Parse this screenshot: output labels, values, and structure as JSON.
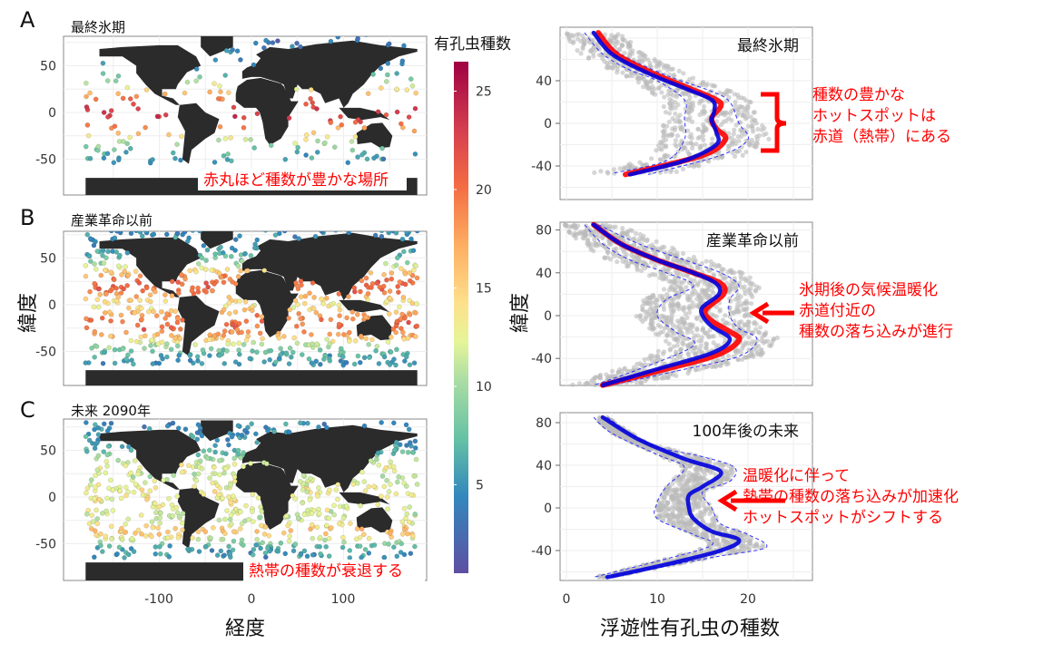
{
  "panel_letters": [
    "A",
    "B",
    "C"
  ],
  "maps": {
    "titles": [
      "最終氷期",
      "産業革命以前",
      "未来 2090年"
    ],
    "annotation_a": "赤丸ほど種数が豊かな場所",
    "annotation_c": "熱帯の種数が衰退する",
    "y_label": "緯度",
    "x_label": "経度",
    "x_ticks": [
      "-100",
      "0",
      "100"
    ],
    "y_ticks": [
      "50",
      "0",
      "-50"
    ],
    "land_color": "#2b2b2b"
  },
  "colorbar": {
    "title": "有孔虫種数",
    "ticks": [
      "25",
      "20",
      "15",
      "10",
      "5"
    ],
    "range": [
      0.5,
      26.5
    ],
    "palette": "Spectral (purple→blue→green→yellow→orange→red)"
  },
  "chart_data": [
    {
      "type": "line",
      "title": "最終氷期",
      "xlabel": "浮遊性有孔虫の種数",
      "ylabel": "緯度",
      "xlim": [
        0,
        27
      ],
      "ylim": [
        -65,
        88
      ],
      "x_ticks": [
        "0",
        "10",
        "20"
      ],
      "y_ticks": [
        "40",
        "0",
        "-40"
      ],
      "grid": true,
      "series": [
        {
          "color": "#0000dd",
          "points": [
            [
              3,
              85
            ],
            [
              5,
              65
            ],
            [
              9,
              47
            ],
            [
              13,
              33
            ],
            [
              16,
              22
            ],
            [
              16.3,
              12
            ],
            [
              16,
              3
            ],
            [
              16.5,
              -8
            ],
            [
              16.5,
              -20
            ],
            [
              13,
              -35
            ],
            [
              7,
              -48
            ]
          ]
        },
        {
          "color": "#ff0000",
          "points": [
            [
              3.5,
              85
            ],
            [
              5.5,
              65
            ],
            [
              9.5,
              47
            ],
            [
              13.5,
              33
            ],
            [
              16.5,
              22
            ],
            [
              17,
              16
            ],
            [
              16,
              5
            ],
            [
              16.5,
              -5
            ],
            [
              17.5,
              -15
            ],
            [
              15,
              -30
            ],
            [
              6.5,
              -48
            ]
          ]
        }
      ],
      "interval": {
        "lower": [
          [
            2,
            85
          ],
          [
            4,
            65
          ],
          [
            7,
            50
          ],
          [
            10,
            40
          ],
          [
            13,
            22
          ],
          [
            13,
            5
          ],
          [
            13,
            -15
          ],
          [
            11,
            -35
          ],
          [
            5,
            -47
          ]
        ],
        "upper": [
          [
            3.5,
            85
          ],
          [
            6,
            65
          ],
          [
            11,
            45
          ],
          [
            16,
            30
          ],
          [
            18,
            20
          ],
          [
            19,
            0
          ],
          [
            20,
            -15
          ],
          [
            17,
            -30
          ],
          [
            9,
            -48
          ]
        ]
      },
      "annotation": [
        "種数の豊かな",
        "ホットスポットは",
        "赤道（熱帯）にある"
      ]
    },
    {
      "type": "line",
      "title": "産業革命以前",
      "xlabel": "浮遊性有孔虫の種数",
      "ylabel": "緯度",
      "xlim": [
        0,
        27
      ],
      "ylim": [
        -68,
        88
      ],
      "x_ticks": [
        "0",
        "10",
        "20"
      ],
      "y_ticks": [
        "80",
        "40",
        "0",
        "-40"
      ],
      "grid": true,
      "series": [
        {
          "color": "#0000dd",
          "points": [
            [
              3,
              85
            ],
            [
              6,
              67
            ],
            [
              10,
              52
            ],
            [
              14,
              40
            ],
            [
              16.5,
              30
            ],
            [
              16.8,
              20
            ],
            [
              15,
              8
            ],
            [
              15,
              0
            ],
            [
              16,
              -10
            ],
            [
              18,
              -22
            ],
            [
              16,
              -35
            ],
            [
              10,
              -50
            ],
            [
              4,
              -65
            ]
          ]
        },
        {
          "color": "#ff0000",
          "points": [
            [
              3,
              85
            ],
            [
              6,
              67
            ],
            [
              10,
              52
            ],
            [
              14,
              40
            ],
            [
              17,
              30
            ],
            [
              17.3,
              20
            ],
            [
              15.3,
              5
            ],
            [
              16,
              -5
            ],
            [
              18,
              -15
            ],
            [
              19,
              -23
            ],
            [
              16.5,
              -37
            ],
            [
              10,
              -52
            ],
            [
              4,
              -65
            ]
          ]
        }
      ],
      "interval": {
        "lower": [
          [
            2,
            85
          ],
          [
            4,
            67
          ],
          [
            7,
            52
          ],
          [
            11,
            40
          ],
          [
            14,
            28
          ],
          [
            11,
            15
          ],
          [
            10,
            0
          ],
          [
            12,
            -15
          ],
          [
            14,
            -28
          ],
          [
            8,
            -50
          ],
          [
            3,
            -65
          ]
        ],
        "upper": [
          [
            3.5,
            85
          ],
          [
            8,
            67
          ],
          [
            13,
            52
          ],
          [
            17,
            40
          ],
          [
            19,
            28
          ],
          [
            18,
            15
          ],
          [
            18,
            0
          ],
          [
            19,
            -12
          ],
          [
            21,
            -22
          ],
          [
            19,
            -38
          ],
          [
            12,
            -52
          ],
          [
            5,
            -65
          ]
        ]
      },
      "annotation": [
        "氷期後の気候温暖化",
        "赤道付近の",
        "種数の落ち込みが進行"
      ]
    },
    {
      "type": "line",
      "title": "100年後の未来",
      "xlabel": "浮遊性有孔虫の種数",
      "ylabel": "緯度",
      "xlim": [
        0,
        27
      ],
      "ylim": [
        -68,
        88
      ],
      "x_ticks": [
        "0",
        "10",
        "20"
      ],
      "y_ticks": [
        "80",
        "40",
        "0",
        "-40"
      ],
      "grid": true,
      "series": [
        {
          "color": "#0000dd",
          "points": [
            [
              4,
              85
            ],
            [
              8,
              64
            ],
            [
              13,
              46
            ],
            [
              17,
              34
            ],
            [
              15,
              20
            ],
            [
              13.5,
              12
            ],
            [
              13.5,
              0
            ],
            [
              14,
              -10
            ],
            [
              16,
              -22
            ],
            [
              19,
              -30
            ],
            [
              17,
              -40
            ],
            [
              11,
              -53
            ],
            [
              4.5,
              -65
            ]
          ]
        }
      ],
      "interval": {
        "lower": [
          [
            3,
            85
          ],
          [
            5,
            70
          ],
          [
            10,
            50
          ],
          [
            13,
            38
          ],
          [
            11,
            20
          ],
          [
            10,
            5
          ],
          [
            10,
            -10
          ],
          [
            14,
            -25
          ],
          [
            16,
            -35
          ],
          [
            10,
            -50
          ],
          [
            3,
            -65
          ]
        ],
        "upper": [
          [
            4.5,
            85
          ],
          [
            9,
            60
          ],
          [
            15,
            48
          ],
          [
            18.5,
            38
          ],
          [
            18,
            25
          ],
          [
            15,
            15
          ],
          [
            16,
            0
          ],
          [
            17,
            -15
          ],
          [
            20,
            -25
          ],
          [
            22,
            -37
          ],
          [
            17,
            -45
          ],
          [
            12,
            -53
          ],
          [
            5,
            -65
          ]
        ]
      },
      "annotation": [
        "温暖化に伴って",
        "熱帯の種数の落ち込みが加速化",
        "ホットスポットがシフトする"
      ]
    }
  ]
}
